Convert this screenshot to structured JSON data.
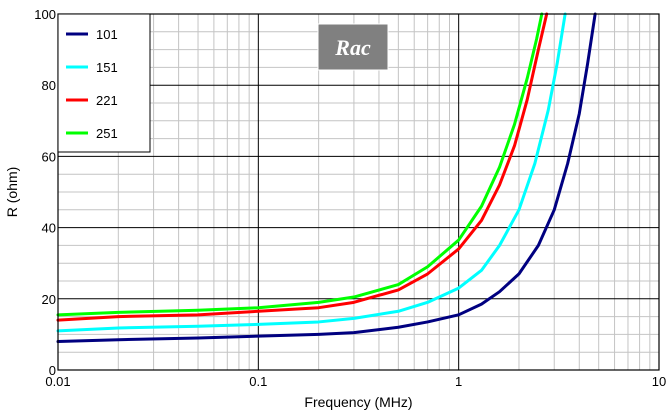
{
  "chart_data": {
    "type": "line",
    "annotation": "Rac",
    "xlabel": "Frequency (MHz)",
    "ylabel": "R (ohm)",
    "x_scale": "log",
    "xlim": [
      0.01,
      10
    ],
    "ylim": [
      0,
      100
    ],
    "x_ticks": [
      "0.01",
      "0.1",
      "1",
      "10"
    ],
    "y_ticks": [
      "0",
      "20",
      "40",
      "60",
      "80",
      "100"
    ],
    "grid": true,
    "legend_position": "top-left",
    "series": [
      {
        "name": "101",
        "color": "#000080",
        "points": [
          [
            0.01,
            8.0
          ],
          [
            0.02,
            8.5
          ],
          [
            0.05,
            9.0
          ],
          [
            0.1,
            9.5
          ],
          [
            0.2,
            10.0
          ],
          [
            0.3,
            10.5
          ],
          [
            0.5,
            12.0
          ],
          [
            0.7,
            13.5
          ],
          [
            1.0,
            15.5
          ],
          [
            1.3,
            18.5
          ],
          [
            1.6,
            22.0
          ],
          [
            2.0,
            27.0
          ],
          [
            2.5,
            35.0
          ],
          [
            3.0,
            45.0
          ],
          [
            3.5,
            58.0
          ],
          [
            4.0,
            72.0
          ],
          [
            4.4,
            86.0
          ],
          [
            4.8,
            100.0
          ]
        ]
      },
      {
        "name": "151",
        "color": "#00ffff",
        "points": [
          [
            0.01,
            11.0
          ],
          [
            0.02,
            11.8
          ],
          [
            0.05,
            12.3
          ],
          [
            0.1,
            12.8
          ],
          [
            0.2,
            13.5
          ],
          [
            0.3,
            14.5
          ],
          [
            0.5,
            16.5
          ],
          [
            0.7,
            19.0
          ],
          [
            1.0,
            23.0
          ],
          [
            1.3,
            28.0
          ],
          [
            1.6,
            35.0
          ],
          [
            2.0,
            45.0
          ],
          [
            2.4,
            58.0
          ],
          [
            2.8,
            73.0
          ],
          [
            3.1,
            86.0
          ],
          [
            3.4,
            100.0
          ]
        ]
      },
      {
        "name": "221",
        "color": "#ff0000",
        "points": [
          [
            0.01,
            14.0
          ],
          [
            0.02,
            15.0
          ],
          [
            0.05,
            15.5
          ],
          [
            0.1,
            16.5
          ],
          [
            0.2,
            17.5
          ],
          [
            0.3,
            19.0
          ],
          [
            0.5,
            22.5
          ],
          [
            0.7,
            27.0
          ],
          [
            1.0,
            34.0
          ],
          [
            1.3,
            42.0
          ],
          [
            1.6,
            52.0
          ],
          [
            1.9,
            63.0
          ],
          [
            2.2,
            76.0
          ],
          [
            2.5,
            90.0
          ],
          [
            2.75,
            100.0
          ]
        ]
      },
      {
        "name": "251",
        "color": "#00ff00",
        "points": [
          [
            0.01,
            15.5
          ],
          [
            0.02,
            16.2
          ],
          [
            0.05,
            16.8
          ],
          [
            0.1,
            17.5
          ],
          [
            0.2,
            19.0
          ],
          [
            0.3,
            20.5
          ],
          [
            0.5,
            24.0
          ],
          [
            0.7,
            29.0
          ],
          [
            1.0,
            36.5
          ],
          [
            1.3,
            46.0
          ],
          [
            1.6,
            57.0
          ],
          [
            1.9,
            69.0
          ],
          [
            2.2,
            82.0
          ],
          [
            2.45,
            93.0
          ],
          [
            2.6,
            100.0
          ]
        ]
      }
    ]
  }
}
